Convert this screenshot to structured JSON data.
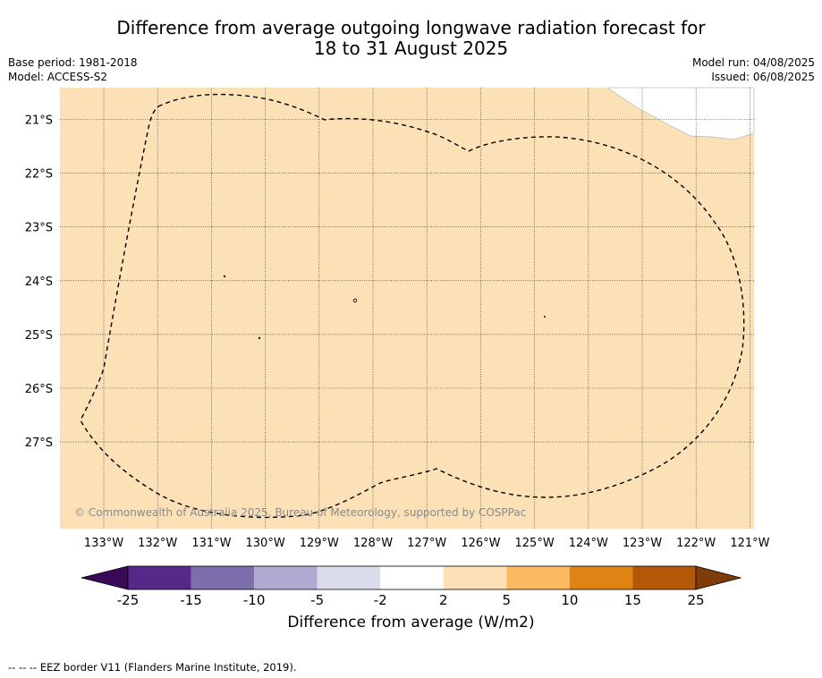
{
  "title": {
    "line1": "Difference from average outgoing longwave radiation forecast for",
    "line2": "18 to 31 August 2025"
  },
  "meta_left": {
    "base_period": "Base period: 1981-2018",
    "model": "Model: ACCESS-S2"
  },
  "meta_right": {
    "model_run": "Model run: 04/08/2025",
    "issued": "Issued: 06/08/2025"
  },
  "map": {
    "longitude_labels": [
      "133°W",
      "132°W",
      "131°W",
      "130°W",
      "129°W",
      "128°W",
      "127°W",
      "126°W",
      "125°W",
      "124°W",
      "123°W",
      "122°W",
      "121°W"
    ],
    "latitude_labels": [
      "21°S",
      "22°S",
      "23°S",
      "24°S",
      "25°S",
      "26°S",
      "27°S"
    ],
    "copyright": "© Commonwealth of Australia 2025, Bureau of Meteorology, supported by COSPPac",
    "fill_color": "#fce0b6",
    "no_data_color": "#ffffff"
  },
  "colorbar": {
    "ticks": [
      "-25",
      "-15",
      "-10",
      "-5",
      "-2",
      "2",
      "5",
      "10",
      "15",
      "25"
    ],
    "colors": [
      "#3a0a59",
      "#562887",
      "#7d6fac",
      "#b0a9d1",
      "#dadbeb",
      "#ffffff",
      "#fde0b6",
      "#fdb862",
      "#e08315",
      "#b35806",
      "#7f3b08"
    ],
    "label": "Difference from average (W/m2)"
  },
  "footer": {
    "legend_note": "--  --  -- EEZ border V11 (Flanders Marine Institute, 2019)."
  }
}
